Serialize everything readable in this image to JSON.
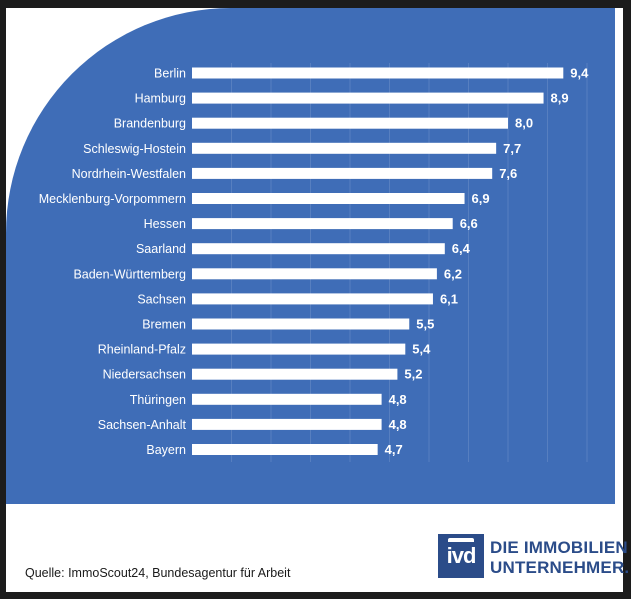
{
  "chart_data": {
    "type": "bar",
    "orientation": "horizontal",
    "categories": [
      "Berlin",
      "Hamburg",
      "Brandenburg",
      "Schleswig-Hostein",
      "Nordrhein-Westfalen",
      "Mecklenburg-Vorpommern",
      "Hessen",
      "Saarland",
      "Baden-Württemberg",
      "Sachsen",
      "Bremen",
      "Rheinland-Pfalz",
      "Niedersachsen",
      "Thüringen",
      "Sachsen-Anhalt",
      "Bayern"
    ],
    "values": [
      9.4,
      8.9,
      8.0,
      7.7,
      7.6,
      6.9,
      6.6,
      6.4,
      6.2,
      6.1,
      5.5,
      5.4,
      5.2,
      4.8,
      4.8,
      4.7
    ],
    "value_labels": [
      "9,4",
      "8,9",
      "8,0",
      "7,7",
      "7,6",
      "6,9",
      "6,6",
      "6,4",
      "6,2",
      "6,1",
      "5,5",
      "5,4",
      "5,2",
      "4,8",
      "4,8",
      "4,7"
    ],
    "title": "",
    "xlabel": "",
    "ylabel": "",
    "grid": true,
    "bar_color": "#ffffff",
    "background_color": "#3f6db7"
  },
  "footer": {
    "source": "Quelle: ImmoScout24, Bundesagentur für Arbeit"
  },
  "logo": {
    "mark": "ivd",
    "line1": "DIE IMMOBILIEN",
    "line2": "UNTERNEHMER.",
    "color": "#2b4c89"
  }
}
